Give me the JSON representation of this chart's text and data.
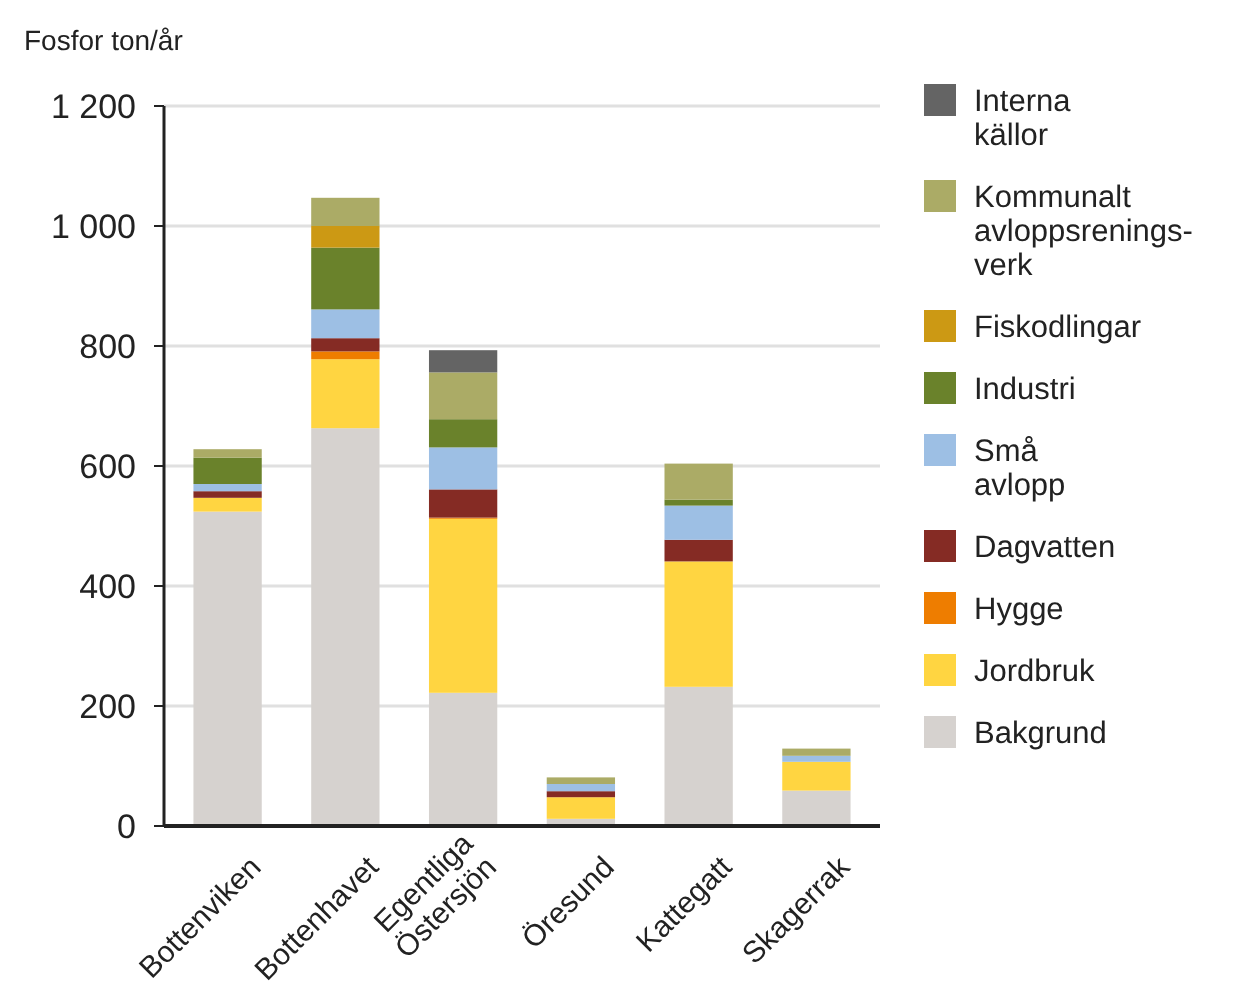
{
  "chart_data": {
    "type": "bar",
    "stacked": true,
    "ylabel": "Fosfor ton/år",
    "categories": [
      "Bottenviken",
      "Bottenhavet",
      "Egentliga Östersjön",
      "Öresund",
      "Kattegatt",
      "Skagerrak"
    ],
    "ylim": [
      0,
      1200
    ],
    "yticks": [
      0,
      200,
      400,
      600,
      800,
      {
        "value": 1000,
        "label": "1 000"
      },
      {
        "value": 1200,
        "label": "1 200"
      }
    ],
    "grid": "y",
    "legend": "right",
    "series": [
      {
        "name": "Bakgrund",
        "color": "#d6d2cf",
        "values": [
          524,
          663,
          222,
          12,
          232,
          59
        ]
      },
      {
        "name": "Jordbruk",
        "color": "#ffd541",
        "values": [
          23,
          115,
          290,
          36,
          209,
          48
        ]
      },
      {
        "name": "Hygge",
        "color": "#ee7d00",
        "values": [
          0,
          13,
          2,
          0,
          0,
          0
        ]
      },
      {
        "name": "Dagvatten",
        "color": "#852b24",
        "values": [
          11,
          22,
          47,
          10,
          36,
          0
        ]
      },
      {
        "name": "Små avlopp",
        "color": "#9dbfe4",
        "values": [
          12,
          48,
          70,
          12,
          57,
          10
        ]
      },
      {
        "name": "Industri",
        "color": "#6a822b",
        "values": [
          44,
          103,
          47,
          0,
          10,
          0
        ]
      },
      {
        "name": "Fiskodlingar",
        "color": "#cc9914",
        "values": [
          0,
          36,
          0,
          0,
          0,
          0
        ]
      },
      {
        "name": "Kommunalt avloppsrenings-verk",
        "color": "#abab66",
        "values": [
          14,
          47,
          78,
          11,
          60,
          12
        ]
      },
      {
        "name": "Interna källor",
        "color": "#646464",
        "values": [
          0,
          0,
          37,
          0,
          0,
          0
        ]
      }
    ]
  }
}
